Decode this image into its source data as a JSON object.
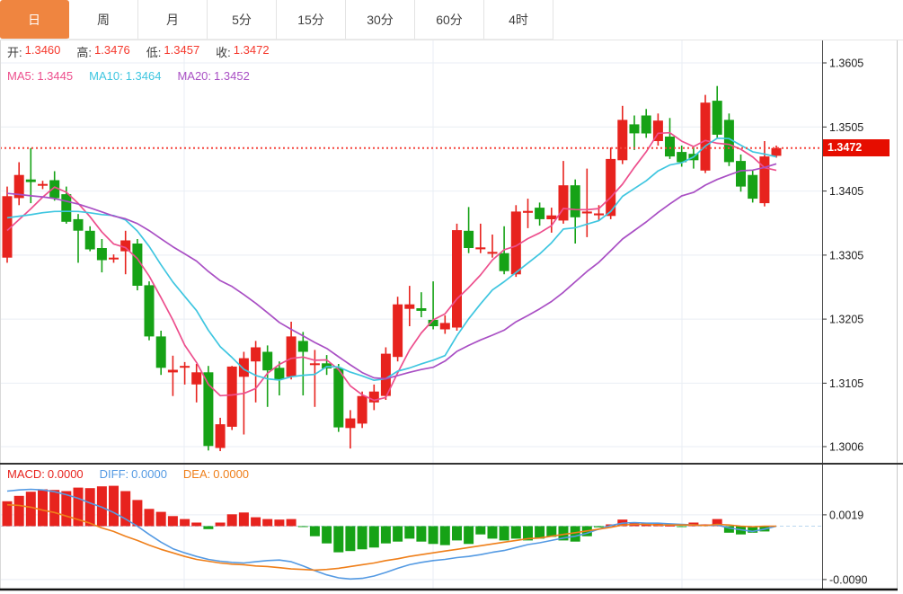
{
  "toolbar": {
    "selected_color": "#ef8540",
    "tabs": [
      {
        "label": "日",
        "selected": true
      },
      {
        "label": "周",
        "selected": false
      },
      {
        "label": "月",
        "selected": false
      },
      {
        "label": "5分",
        "selected": false
      },
      {
        "label": "15分",
        "selected": false
      },
      {
        "label": "30分",
        "selected": false
      },
      {
        "label": "60分",
        "selected": false
      },
      {
        "label": "4时",
        "selected": false
      }
    ]
  },
  "main_chart": {
    "ohlc_legend": {
      "open_label": "开:",
      "open_value": "1.3460",
      "high_label": "高:",
      "high_value": "1.3476",
      "low_label": "低:",
      "low_value": "1.3457",
      "close_label": "收:",
      "close_value": "1.3472"
    },
    "ma_legend": {
      "ma5_label": "MA5:",
      "ma5_value": "1.3445",
      "ma10_label": "MA10:",
      "ma10_value": "1.3464",
      "ma20_label": "MA20:",
      "ma20_value": "1.3452"
    },
    "y_axis_labels": [
      "1.3605",
      "1.3505",
      "1.3405",
      "1.3305",
      "1.3205",
      "1.3105",
      "1.3006"
    ],
    "current_price_badge": "1.3472"
  },
  "macd_panel": {
    "legend": {
      "macd_label": "MACD:",
      "macd_value": "0.0000",
      "diff_label": "DIFF:",
      "diff_value": "0.0000",
      "dea_label": "DEA:",
      "dea_value": "0.0000"
    },
    "y_axis_labels": [
      "0.0019",
      "-0.0090"
    ]
  },
  "colors": {
    "accent_orange": "#ef8540",
    "up_red": "#e7231e",
    "down_green": "#16a216",
    "ohlc_value_red": "#f5382c",
    "price_line_red": "#f5453d",
    "badge_red": "#e60d00",
    "ma5_pink": "#ed4f8d",
    "ma10_cyan": "#3fc6e0",
    "ma20_purple": "#a94fc4",
    "diff_blue": "#549ae3",
    "dea_orange": "#ef7f1a",
    "grid": "#e9eef4"
  },
  "chart_data": {
    "type": "candlestick",
    "title": "",
    "legend_position": "top-left",
    "grid": true,
    "panels": [
      {
        "name": "price",
        "type": "candlestick",
        "y_ticks": [
          1.3605,
          1.3505,
          1.3405,
          1.3305,
          1.3205,
          1.3105,
          1.3006
        ],
        "ylim": [
          1.2985,
          1.364
        ],
        "current_price": 1.3472,
        "up_color": "#e7231e",
        "down_color": "#16a216",
        "ma_periods": [
          5,
          10,
          20
        ],
        "ma_colors": {
          "ma5": "#ed4f8d",
          "ma10": "#3fc6e0",
          "ma20": "#a94fc4"
        },
        "ma_last_values": {
          "ma5": 1.3445,
          "ma10": 1.3464,
          "ma20": 1.3452
        },
        "ma_seed_closes": [
          1.347,
          1.3465,
          1.346,
          1.345,
          1.3445,
          1.344,
          1.3435,
          1.343,
          1.3425,
          1.343,
          1.3415,
          1.3405,
          1.3395,
          1.3385,
          1.3375,
          1.3355,
          1.3345,
          1.3335,
          1.3325,
          1.3315
        ],
        "ohlc": [
          [
            1.3301,
            1.3412,
            1.3293,
            1.3397
          ],
          [
            1.3394,
            1.345,
            1.3383,
            1.343
          ],
          [
            1.3423,
            1.3472,
            1.3386,
            1.3419
          ],
          [
            1.3414,
            1.3421,
            1.3408,
            1.3416
          ],
          [
            1.3422,
            1.3436,
            1.339,
            1.3394
          ],
          [
            1.34,
            1.3412,
            1.3354,
            1.3357
          ],
          [
            1.3361,
            1.3369,
            1.3293,
            1.3343
          ],
          [
            1.3343,
            1.335,
            1.3311,
            1.3314
          ],
          [
            1.3316,
            1.333,
            1.3278,
            1.3297
          ],
          [
            1.3299,
            1.3306,
            1.3293,
            1.3301
          ],
          [
            1.3311,
            1.3343,
            1.3275,
            1.3328
          ],
          [
            1.3323,
            1.333,
            1.325,
            1.3257
          ],
          [
            1.3258,
            1.3264,
            1.3172,
            1.3178
          ],
          [
            1.3178,
            1.3187,
            1.3118,
            1.3129
          ],
          [
            1.3122,
            1.3148,
            1.3085,
            1.3126
          ],
          [
            1.313,
            1.3138,
            1.3103,
            1.3132
          ],
          [
            1.3103,
            1.3135,
            1.3075,
            1.3122
          ],
          [
            1.3122,
            1.3132,
            1.3,
            1.3007
          ],
          [
            1.3004,
            1.3051,
            1.2999,
            1.3041
          ],
          [
            1.3037,
            1.3132,
            1.3032,
            1.3131
          ],
          [
            1.3115,
            1.3154,
            1.3025,
            1.3144
          ],
          [
            1.3139,
            1.3171,
            1.3075,
            1.3161
          ],
          [
            1.3154,
            1.3164,
            1.3068,
            1.3125
          ],
          [
            1.3129,
            1.3139,
            1.3086,
            1.3111
          ],
          [
            1.3115,
            1.3201,
            1.3111,
            1.3178
          ],
          [
            1.3171,
            1.3185,
            1.3086,
            1.3154
          ],
          [
            1.3134,
            1.3157,
            1.3068,
            1.3136
          ],
          [
            1.3136,
            1.3149,
            1.3118,
            1.3128
          ],
          [
            1.3128,
            1.3135,
            1.3029,
            1.3036
          ],
          [
            1.3035,
            1.3063,
            1.3003,
            1.305
          ],
          [
            1.3042,
            1.3092,
            1.3035,
            1.3085
          ],
          [
            1.3075,
            1.3103,
            1.3063,
            1.3092
          ],
          [
            1.3085,
            1.3161,
            1.3079,
            1.3151
          ],
          [
            1.3146,
            1.324,
            1.3139,
            1.3228
          ],
          [
            1.3221,
            1.3257,
            1.3194,
            1.3228
          ],
          [
            1.3222,
            1.3247,
            1.3208,
            1.3218
          ],
          [
            1.3204,
            1.3264,
            1.3189,
            1.3194
          ],
          [
            1.3189,
            1.3211,
            1.3182,
            1.3199
          ],
          [
            1.3192,
            1.3354,
            1.3187,
            1.3344
          ],
          [
            1.3343,
            1.338,
            1.3308,
            1.3316
          ],
          [
            1.3314,
            1.3354,
            1.3308,
            1.3317
          ],
          [
            1.3307,
            1.3337,
            1.3301,
            1.331
          ],
          [
            1.3308,
            1.335,
            1.3275,
            1.328
          ],
          [
            1.3275,
            1.3383,
            1.3271,
            1.3373
          ],
          [
            1.3371,
            1.3393,
            1.3347,
            1.3374
          ],
          [
            1.3379,
            1.3387,
            1.3351,
            1.3361
          ],
          [
            1.3361,
            1.3379,
            1.334,
            1.3367
          ],
          [
            1.3359,
            1.3452,
            1.3354,
            1.3414
          ],
          [
            1.3414,
            1.3423,
            1.3323,
            1.3364
          ],
          [
            1.337,
            1.344,
            1.3333,
            1.3373
          ],
          [
            1.3367,
            1.3383,
            1.3359,
            1.337
          ],
          [
            1.3366,
            1.3473,
            1.3361,
            1.3455
          ],
          [
            1.3453,
            1.3538,
            1.3447,
            1.3516
          ],
          [
            1.3509,
            1.3523,
            1.3469,
            1.3495
          ],
          [
            1.3523,
            1.3533,
            1.3488,
            1.3495
          ],
          [
            1.3483,
            1.3526,
            1.3476,
            1.3515
          ],
          [
            1.349,
            1.3519,
            1.3455,
            1.3459
          ],
          [
            1.3466,
            1.3476,
            1.3443,
            1.345
          ],
          [
            1.3463,
            1.3473,
            1.344,
            1.3453
          ],
          [
            1.3437,
            1.3555,
            1.3433,
            1.3543
          ],
          [
            1.3546,
            1.3569,
            1.3488,
            1.3493
          ],
          [
            1.3516,
            1.3526,
            1.3444,
            1.345
          ],
          [
            1.3452,
            1.3462,
            1.3404,
            1.3412
          ],
          [
            1.343,
            1.3437,
            1.3387,
            1.3393
          ],
          [
            1.3386,
            1.3483,
            1.3381,
            1.3459
          ],
          [
            1.346,
            1.3476,
            1.3457,
            1.3472
          ]
        ]
      },
      {
        "name": "macd",
        "type": "macd",
        "y_ticks": [
          0.0019,
          -0.009
        ],
        "diff_color": "#549ae3",
        "dea_color": "#ef7f1a",
        "hist": [
          0.0042,
          0.0051,
          0.0058,
          0.0062,
          0.0061,
          0.0059,
          0.0065,
          0.0064,
          0.0067,
          0.0068,
          0.0059,
          0.0044,
          0.0029,
          0.0024,
          0.0017,
          0.0012,
          0.0006,
          -0.0005,
          0.0006,
          0.002,
          0.0023,
          0.0015,
          0.0012,
          0.0011,
          0.0012,
          -0.0001,
          -0.0017,
          -0.0029,
          -0.0044,
          -0.0042,
          -0.0039,
          -0.0036,
          -0.0029,
          -0.0026,
          -0.0021,
          -0.0026,
          -0.003,
          -0.0032,
          -0.0024,
          -0.003,
          -0.0014,
          -0.0021,
          -0.0024,
          -0.0021,
          -0.0024,
          -0.0021,
          -0.0018,
          -0.0024,
          -0.0026,
          -0.0017,
          -0.0002,
          0.0003,
          0.0011,
          0.0006,
          0.0006,
          0.0005,
          0.0001,
          -0.0001,
          0.0006,
          0.0003,
          0.0012,
          -0.0011,
          -0.0014,
          -0.0011,
          -0.0009,
          0.0
        ],
        "diff": [
          0.0059,
          0.0061,
          0.0062,
          0.0061,
          0.0058,
          0.0053,
          0.0047,
          0.0039,
          0.0032,
          0.0023,
          0.0012,
          0.0,
          -0.0014,
          -0.0027,
          -0.0038,
          -0.0045,
          -0.0051,
          -0.0056,
          -0.0059,
          -0.0061,
          -0.0062,
          -0.006,
          -0.0058,
          -0.0057,
          -0.006,
          -0.0067,
          -0.0075,
          -0.0082,
          -0.0087,
          -0.0089,
          -0.0088,
          -0.0084,
          -0.0078,
          -0.0071,
          -0.0065,
          -0.0061,
          -0.0058,
          -0.0056,
          -0.0053,
          -0.0051,
          -0.0048,
          -0.0044,
          -0.0041,
          -0.0036,
          -0.0031,
          -0.0028,
          -0.0024,
          -0.002,
          -0.0017,
          -0.0012,
          -0.0005,
          0.0001,
          0.0005,
          0.0006,
          0.0005,
          0.0005,
          0.0004,
          0.0003,
          0.0002,
          0.0001,
          0.0002,
          -0.0003,
          -0.0006,
          -0.0009,
          -0.0005,
          0.0
        ],
        "dea": [
          0.0036,
          0.0035,
          0.0032,
          0.0027,
          0.0023,
          0.0017,
          0.0011,
          0.0005,
          -0.0003,
          -0.0009,
          -0.0017,
          -0.0024,
          -0.0032,
          -0.0039,
          -0.0045,
          -0.0051,
          -0.0056,
          -0.0059,
          -0.0062,
          -0.0064,
          -0.0065,
          -0.0067,
          -0.0068,
          -0.007,
          -0.0072,
          -0.0073,
          -0.0074,
          -0.0073,
          -0.0071,
          -0.0068,
          -0.0065,
          -0.0062,
          -0.0058,
          -0.0055,
          -0.0051,
          -0.0048,
          -0.0045,
          -0.0042,
          -0.0039,
          -0.0036,
          -0.0033,
          -0.003,
          -0.0027,
          -0.0024,
          -0.0021,
          -0.002,
          -0.0017,
          -0.0014,
          -0.0011,
          -0.0008,
          -0.0005,
          -0.0002,
          0.0002,
          0.0003,
          0.0003,
          0.0002,
          0.0002,
          0.0002,
          0.0002,
          0.0001,
          0.0003,
          0.0002,
          0.0,
          -0.0001,
          0.0,
          0.0
        ]
      }
    ]
  }
}
